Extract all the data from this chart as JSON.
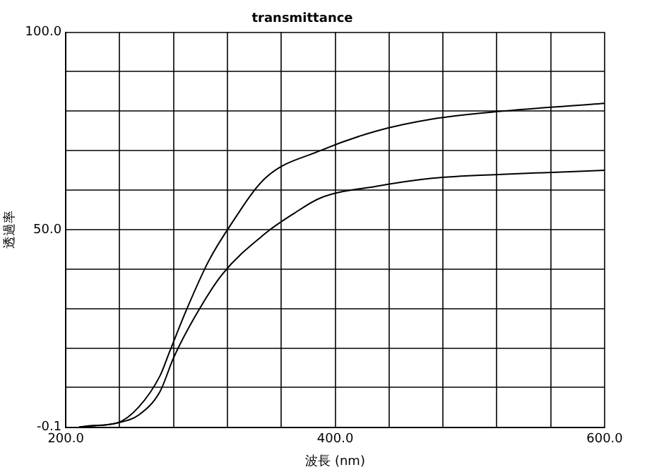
{
  "chart_data": {
    "type": "line",
    "title": "transmittance",
    "xlabel": "波長 (nm)",
    "ylabel": "透過率",
    "xlim": [
      200,
      600
    ],
    "ylim": [
      -0.1,
      100
    ],
    "xticks": [
      {
        "value": 200,
        "label": "200.0"
      },
      {
        "value": 240,
        "label": null
      },
      {
        "value": 280,
        "label": null
      },
      {
        "value": 320,
        "label": null
      },
      {
        "value": 360,
        "label": null
      },
      {
        "value": 400,
        "label": "400.0"
      },
      {
        "value": 440,
        "label": null
      },
      {
        "value": 480,
        "label": null
      },
      {
        "value": 520,
        "label": null
      },
      {
        "value": 560,
        "label": null
      },
      {
        "value": 600,
        "label": "600.0"
      }
    ],
    "yticks": [
      {
        "value": -0.1,
        "label": "-0.1"
      },
      {
        "value": 10,
        "label": null
      },
      {
        "value": 20,
        "label": null
      },
      {
        "value": 30,
        "label": null
      },
      {
        "value": 40,
        "label": null
      },
      {
        "value": 50,
        "label": "50.0"
      },
      {
        "value": 60,
        "label": null
      },
      {
        "value": 70,
        "label": null
      },
      {
        "value": 80,
        "label": null
      },
      {
        "value": 90,
        "label": null
      },
      {
        "value": 100,
        "label": "100.0"
      }
    ],
    "grid": true,
    "legend": false,
    "marker": "none",
    "line_style": "solid",
    "series": [
      {
        "color": "#000000",
        "x": [
          210,
          218,
          238,
          254,
          270,
          277,
          290,
          306,
          322,
          348,
          389,
          431,
          472,
          524,
          600
        ],
        "values": [
          0,
          0.3,
          1,
          5,
          13,
          19,
          30,
          42,
          51,
          63,
          70,
          75,
          78,
          80,
          82
        ]
      },
      {
        "color": "#000000",
        "x": [
          210,
          218,
          238,
          254,
          270,
          280,
          296,
          316,
          348,
          369,
          389,
          431,
          472,
          524,
          600
        ],
        "values": [
          0,
          0.2,
          1,
          3,
          9,
          17.5,
          28,
          38.6,
          49,
          54,
          58,
          61,
          63,
          64,
          65
        ]
      }
    ]
  }
}
